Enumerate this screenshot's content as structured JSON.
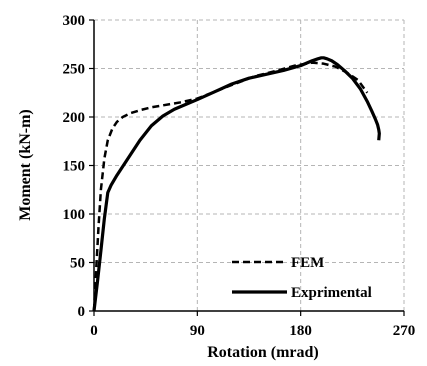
{
  "chart_data": {
    "type": "line",
    "title": "",
    "xlabel": "Rotation (mrad)",
    "ylabel": "Moment (kN-m)",
    "xlim": [
      0,
      270
    ],
    "ylim": [
      0,
      300
    ],
    "xticks": [
      0,
      90,
      180,
      270
    ],
    "yticks": [
      0,
      50,
      100,
      150,
      200,
      250,
      300
    ],
    "grid": true,
    "grid_style": "dashed",
    "legend_position": "bottom-right",
    "series": [
      {
        "name": "FEM",
        "line_style": "dashed",
        "color": "#000000",
        "x": [
          0,
          2,
          4,
          6,
          9,
          12,
          16,
          20,
          25,
          32,
          40,
          50,
          60,
          75,
          90,
          105,
          120,
          140,
          160,
          175,
          190,
          200,
          210,
          220,
          230,
          238
        ],
        "y": [
          0,
          45,
          88,
          125,
          157,
          176,
          188,
          195,
          200,
          204,
          207,
          210,
          212,
          215,
          219,
          226,
          233,
          242,
          248,
          253,
          256,
          255,
          252,
          246,
          238,
          225
        ]
      },
      {
        "name": "Exprimental",
        "line_style": "solid",
        "color": "#000000",
        "x": [
          0,
          3,
          6,
          9,
          12,
          15,
          20,
          25,
          30,
          40,
          50,
          60,
          70,
          80,
          90,
          105,
          120,
          135,
          150,
          165,
          180,
          190,
          195,
          198,
          200,
          203,
          207,
          212,
          218,
          225,
          232,
          238,
          242,
          245,
          247,
          248,
          248.5,
          248
        ],
        "y": [
          0,
          30,
          62,
          95,
          122,
          130,
          140,
          149,
          158,
          176,
          191,
          201,
          208,
          213,
          218,
          226,
          234,
          240,
          244,
          248,
          253,
          258,
          260,
          261,
          261,
          260,
          258,
          254,
          248,
          240,
          229,
          216,
          206,
          198,
          192,
          187,
          183,
          176
        ]
      }
    ]
  }
}
